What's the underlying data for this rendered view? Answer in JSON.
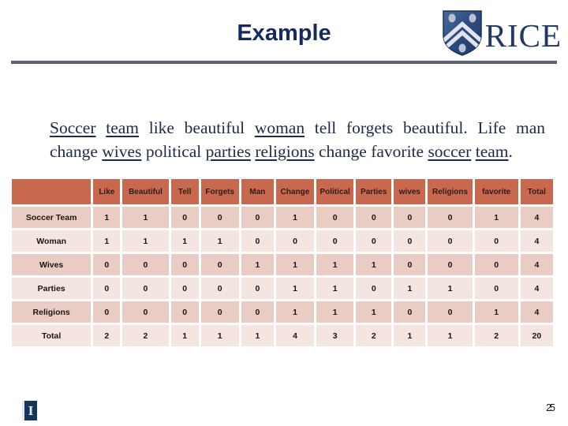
{
  "header": {
    "title": "Example",
    "logo_text": "RICE"
  },
  "paragraph": {
    "segments": [
      {
        "text": "Soccer",
        "underline": true
      },
      {
        "text": " ",
        "underline": false
      },
      {
        "text": "team",
        "underline": true
      },
      {
        "text": " like beautiful ",
        "underline": false
      },
      {
        "text": "woman",
        "underline": true
      },
      {
        "text": " tell forgets beautiful. Life man change ",
        "underline": false
      },
      {
        "text": "wives",
        "underline": true
      },
      {
        "text": " political ",
        "underline": false
      },
      {
        "text": "parties",
        "underline": true
      },
      {
        "text": " ",
        "underline": false
      },
      {
        "text": "religions",
        "underline": true
      },
      {
        "text": " change favorite ",
        "underline": false
      },
      {
        "text": "soccer",
        "underline": true
      },
      {
        "text": " ",
        "underline": false
      },
      {
        "text": "team",
        "underline": true
      },
      {
        "text": ".",
        "underline": false
      }
    ]
  },
  "table": {
    "columns": [
      "",
      "Like",
      "Beautiful",
      "Tell",
      "Forgets",
      "Man",
      "Change",
      "Political",
      "Parties",
      "wives",
      "Religions",
      "favorite",
      "Total"
    ],
    "rows": [
      {
        "label": "Soccer Team",
        "values": [
          "1",
          "1",
          "0",
          "0",
          "0",
          "1",
          "0",
          "0",
          "0",
          "0",
          "1",
          "4"
        ]
      },
      {
        "label": "Woman",
        "values": [
          "1",
          "1",
          "1",
          "1",
          "0",
          "0",
          "0",
          "0",
          "0",
          "0",
          "0",
          "4"
        ]
      },
      {
        "label": "Wives",
        "values": [
          "0",
          "0",
          "0",
          "0",
          "1",
          "1",
          "1",
          "1",
          "0",
          "0",
          "0",
          "4"
        ]
      },
      {
        "label": "Parties",
        "values": [
          "0",
          "0",
          "0",
          "0",
          "0",
          "1",
          "1",
          "0",
          "1",
          "1",
          "0",
          "4"
        ]
      },
      {
        "label": "Religions",
        "values": [
          "0",
          "0",
          "0",
          "0",
          "0",
          "1",
          "1",
          "1",
          "0",
          "0",
          "1",
          "4"
        ]
      },
      {
        "label": "Total",
        "values": [
          "2",
          "2",
          "1",
          "1",
          "1",
          "4",
          "3",
          "2",
          "1",
          "1",
          "2",
          "20"
        ]
      }
    ]
  },
  "footer": {
    "page_number": "25",
    "placeholder_glyph": "I"
  },
  "colors": {
    "title_navy": "#16295F",
    "paragraph_navy": "#1E2A47",
    "table_header_bg": "#C8694F",
    "row_band_dark": "#E9CCC4",
    "row_band_light": "#F5E5E1",
    "divider_gray": "#5A6170",
    "logo_navy": "#1F3864",
    "shield_blue": "#2E4C80"
  },
  "icons": {
    "shield": "rice-shield-icon",
    "placeholder": "image-placeholder-icon"
  }
}
